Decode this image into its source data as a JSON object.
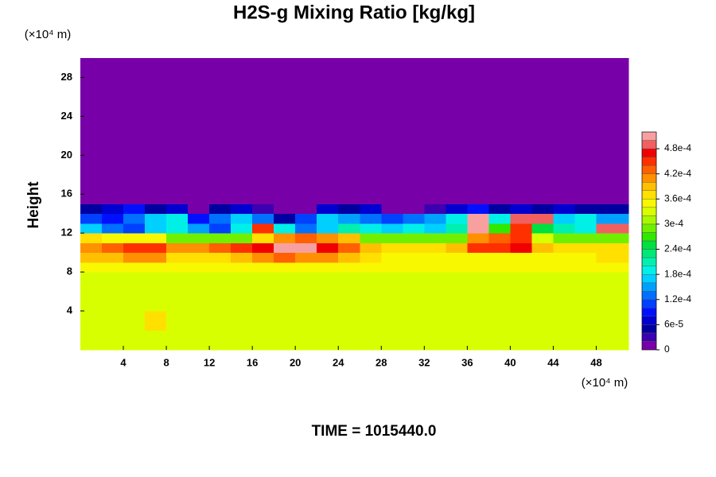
{
  "chart_data": {
    "type": "heatmap",
    "title": "H2S-g Mixing Ratio [kg/kg]",
    "y_label": "Height",
    "y_unit": "(×10⁴ m)",
    "x_unit": "(×10⁴ m)",
    "footer": "TIME = 1015440.0",
    "xlim": [
      0,
      51
    ],
    "ylim": [
      0,
      30
    ],
    "xticks": [
      4,
      8,
      12,
      16,
      20,
      24,
      28,
      32,
      36,
      40,
      44,
      48
    ],
    "yticks": [
      4,
      8,
      12,
      16,
      20,
      24,
      28
    ],
    "x_edges": [
      0,
      2,
      4,
      6,
      8,
      10,
      12,
      14,
      16,
      18,
      20,
      22,
      24,
      26,
      28,
      30,
      32,
      34,
      36,
      38,
      40,
      42,
      44,
      46,
      48,
      51
    ],
    "y_edges": [
      0,
      2,
      4,
      6,
      8,
      9,
      10,
      11,
      12,
      13,
      14,
      15,
      16,
      30
    ],
    "z": [
      [
        0.00032,
        0.00033,
        0.00033,
        0.00033,
        0.00033,
        0.00033,
        0.00033,
        0.00033,
        0.00033,
        0.00033,
        0.00033,
        0.00033,
        0.00033,
        0.00033,
        0.00033,
        0.00033,
        0.00033,
        0.00033,
        0.00033,
        0.00033,
        0.00033,
        0.00033,
        0.00033,
        0.00033,
        0.00033
      ],
      [
        0.00032,
        0.00033,
        0.00033,
        0.00036,
        0.00033,
        0.00033,
        0.00033,
        0.00033,
        0.00033,
        0.00033,
        0.00033,
        0.00033,
        0.00033,
        0.00033,
        0.00033,
        0.00033,
        0.00033,
        0.00033,
        0.00033,
        0.00033,
        0.00033,
        0.00033,
        0.00033,
        0.00033,
        0.00032
      ],
      [
        0.00032,
        0.00033,
        0.00033,
        0.00033,
        0.00033,
        0.00033,
        0.00033,
        0.00033,
        0.00033,
        0.00033,
        0.00033,
        0.00033,
        0.00033,
        0.00033,
        0.00033,
        0.00033,
        0.00033,
        0.00033,
        0.00033,
        0.00033,
        0.00033,
        0.00033,
        0.00033,
        0.00033,
        0.00032
      ],
      [
        0.00033,
        0.00033,
        0.00033,
        0.00033,
        0.00033,
        0.00033,
        0.00033,
        0.00033,
        0.00033,
        0.00033,
        0.00033,
        0.00033,
        0.00033,
        0.00033,
        0.00033,
        0.00033,
        0.00033,
        0.00033,
        0.00033,
        0.00033,
        0.00033,
        0.00033,
        0.00033,
        0.00033,
        0.00033
      ],
      [
        0.00034,
        0.00035,
        0.00034,
        0.00034,
        0.00034,
        0.00034,
        0.00034,
        0.00035,
        0.00035,
        0.00035,
        0.00035,
        0.00035,
        0.00034,
        0.00034,
        0.00034,
        0.00034,
        0.00034,
        0.00034,
        0.00034,
        0.00034,
        0.00034,
        0.00034,
        0.00034,
        0.00034,
        0.00035
      ],
      [
        0.00038,
        0.00038,
        0.0004,
        0.0004,
        0.00036,
        0.00036,
        0.00036,
        0.00038,
        0.0004,
        0.00042,
        0.0004,
        0.0004,
        0.00038,
        0.00036,
        0.00035,
        0.00035,
        0.00035,
        0.00034,
        0.00034,
        0.00034,
        0.00034,
        0.00034,
        0.00034,
        0.00034,
        0.00036
      ],
      [
        0.0004,
        0.00042,
        0.00044,
        0.00044,
        0.0004,
        0.0004,
        0.00042,
        0.00044,
        0.00046,
        0.0005,
        0.0005,
        0.00046,
        0.00042,
        0.00038,
        0.00036,
        0.00036,
        0.00036,
        0.00038,
        0.00044,
        0.00044,
        0.00046,
        0.00038,
        0.00036,
        0.00036,
        0.00036
      ],
      [
        0.00036,
        0.00034,
        0.00034,
        0.00034,
        0.0003,
        0.0003,
        0.00028,
        0.0003,
        0.00036,
        0.0004,
        0.00042,
        0.0004,
        0.00038,
        0.0003,
        0.00028,
        0.00028,
        0.00028,
        0.0003,
        0.0004,
        0.00042,
        0.00044,
        0.00032,
        0.0003,
        0.00028,
        0.0003
      ],
      [
        0.00016,
        0.00012,
        0.0001,
        0.00016,
        0.00018,
        0.00014,
        0.0001,
        0.00018,
        0.00044,
        0.00018,
        0.00012,
        0.00016,
        0.0002,
        0.00018,
        0.00016,
        0.00018,
        0.00016,
        0.0002,
        0.0005,
        0.00026,
        0.00044,
        0.00024,
        0.0002,
        0.00018,
        0.00048
      ],
      [
        0.0001,
        8e-05,
        0.00012,
        0.00016,
        0.00018,
        8e-05,
        0.00012,
        0.00016,
        0.00012,
        4e-05,
        0.0001,
        0.00016,
        0.00014,
        0.00012,
        0.0001,
        0.00012,
        0.00014,
        0.00018,
        0.0005,
        0.00018,
        0.00048,
        0.00048,
        0.00016,
        0.00018,
        0.00014
      ],
      [
        4e-05,
        6e-05,
        8e-05,
        4e-05,
        6e-05,
        0.0,
        4e-05,
        6e-05,
        2e-05,
        0.0,
        0.0,
        6e-05,
        4e-05,
        6e-05,
        0.0,
        0.0,
        2e-05,
        6e-05,
        8e-05,
        4e-05,
        6e-05,
        4e-05,
        6e-05,
        4e-05,
        4e-05
      ],
      [
        0.0,
        0.0,
        0.0,
        0.0,
        0.0,
        0.0,
        0.0,
        0.0,
        0.0,
        0.0,
        0.0,
        0.0,
        0.0,
        0.0,
        0.0,
        0.0,
        0.0,
        0.0,
        0.0,
        0.0,
        0.0,
        0.0,
        0.0,
        0.0,
        0.0
      ],
      [
        0.0,
        0.0,
        0.0,
        0.0,
        0.0,
        0.0,
        0.0,
        0.0,
        0.0,
        0.0,
        0.0,
        0.0,
        0.0,
        0.0,
        0.0,
        0.0,
        0.0,
        0.0,
        0.0,
        0.0,
        0.0,
        0.0,
        0.0,
        0.0,
        0.0
      ]
    ],
    "clim": [
      0,
      0.00052
    ],
    "cticks": [
      0,
      {
        "value": 6e-05,
        "label": "6e-5"
      },
      {
        "value": 0.00012,
        "label": "1.2e-4"
      },
      {
        "value": 0.00018,
        "label": "1.8e-4"
      },
      {
        "value": 0.00024,
        "label": "2.4e-4"
      },
      {
        "value": 0.0003,
        "label": "3e-4"
      },
      {
        "value": 0.00036,
        "label": "3.6e-4"
      },
      {
        "value": 0.00042,
        "label": "4.2e-4"
      },
      {
        "value": 0.00048,
        "label": "4.8e-4"
      }
    ],
    "colormap": [
      "#7800a8",
      "#3c00b0",
      "#0000a0",
      "#0000d0",
      "#0010ff",
      "#0040ff",
      "#0070ff",
      "#00a0ff",
      "#00d0ff",
      "#00f0e8",
      "#00f0b0",
      "#00e878",
      "#00e040",
      "#30e800",
      "#70f000",
      "#a8f800",
      "#d8ff00",
      "#f8f800",
      "#ffe000",
      "#ffc000",
      "#ff9000",
      "#ff6000",
      "#ff3000",
      "#f00000",
      "#f06060",
      "#f8a0a0"
    ]
  }
}
